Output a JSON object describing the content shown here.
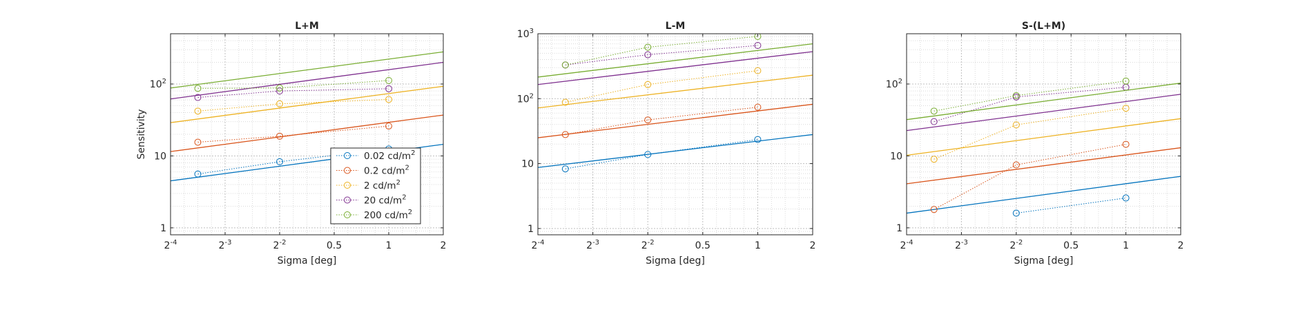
{
  "figure": {
    "series_colors": [
      "#0072BD",
      "#D95319",
      "#EDB120",
      "#7E2F8E",
      "#77AC30"
    ],
    "legend": {
      "entries": [
        {
          "value": "0.02",
          "unit": "cd/m",
          "sup": "2"
        },
        {
          "value": "0.2",
          "unit": "cd/m",
          "sup": "2"
        },
        {
          "value": "2",
          "unit": "cd/m",
          "sup": "2"
        },
        {
          "value": "20",
          "unit": "cd/m",
          "sup": "2"
        },
        {
          "value": "200",
          "unit": "cd/m",
          "sup": "2"
        }
      ]
    }
  },
  "chart_data": [
    {
      "type": "line",
      "title": "L+M",
      "xlabel": "Sigma [deg]",
      "ylabel": "Sensitivity",
      "xscale": "log2",
      "yscale": "log10",
      "xlim": [
        0.0625,
        2
      ],
      "ylim": [
        0.8,
        500
      ],
      "xticks": [
        {
          "v": 0.0625,
          "base": "2",
          "exp": "-4"
        },
        {
          "v": 0.125,
          "base": "2",
          "exp": "-3"
        },
        {
          "v": 0.25,
          "base": "2",
          "exp": "-2"
        },
        {
          "v": 0.5,
          "base": "0.5",
          "exp": ""
        },
        {
          "v": 1,
          "base": "1",
          "exp": ""
        },
        {
          "v": 2,
          "base": "2",
          "exp": ""
        }
      ],
      "yticks": [
        {
          "v": 1,
          "base": "1",
          "exp": ""
        },
        {
          "v": 10,
          "base": "10",
          "exp": ""
        },
        {
          "v": 100,
          "base": "10",
          "exp": "2"
        }
      ],
      "grid": true,
      "legend_position": "bottom-right",
      "series": [
        {
          "name": "0.02 cd/m2",
          "points": [
            [
              0.0884,
              5.6
            ],
            [
              0.25,
              8.3
            ],
            [
              1,
              12.5
            ]
          ],
          "fit": [
            [
              0.0625,
              4.5
            ],
            [
              2,
              14.5
            ]
          ]
        },
        {
          "name": "0.2 cd/m2",
          "points": [
            [
              0.0884,
              15.5
            ],
            [
              0.25,
              18.8
            ],
            [
              1,
              26
            ]
          ],
          "fit": [
            [
              0.0625,
              11.5
            ],
            [
              2,
              37
            ]
          ]
        },
        {
          "name": "2 cd/m2",
          "points": [
            [
              0.0884,
              42
            ],
            [
              0.25,
              53
            ],
            [
              1,
              61
            ]
          ],
          "fit": [
            [
              0.0625,
              29
            ],
            [
              2,
              93
            ]
          ]
        },
        {
          "name": "20 cd/m2",
          "points": [
            [
              0.0884,
              65
            ],
            [
              0.25,
              80
            ],
            [
              1,
              86
            ]
          ],
          "fit": [
            [
              0.0625,
              62
            ],
            [
              2,
              200
            ]
          ]
        },
        {
          "name": "200 cd/m2",
          "points": [
            [
              0.0884,
              87
            ],
            [
              0.25,
              88
            ],
            [
              1,
              112
            ]
          ],
          "fit": [
            [
              0.0625,
              88
            ],
            [
              2,
              280
            ]
          ]
        }
      ]
    },
    {
      "type": "line",
      "title": "L-M",
      "xlabel": "Sigma [deg]",
      "ylabel": "",
      "xscale": "log2",
      "yscale": "log10",
      "xlim": [
        0.0625,
        2
      ],
      "ylim": [
        0.8,
        1000
      ],
      "xticks": [
        {
          "v": 0.0625,
          "base": "2",
          "exp": "-4"
        },
        {
          "v": 0.125,
          "base": "2",
          "exp": "-3"
        },
        {
          "v": 0.25,
          "base": "2",
          "exp": "-2"
        },
        {
          "v": 0.5,
          "base": "0.5",
          "exp": ""
        },
        {
          "v": 1,
          "base": "1",
          "exp": ""
        },
        {
          "v": 2,
          "base": "2",
          "exp": ""
        }
      ],
      "yticks": [
        {
          "v": 1,
          "base": "1",
          "exp": ""
        },
        {
          "v": 10,
          "base": "10",
          "exp": ""
        },
        {
          "v": 100,
          "base": "10",
          "exp": "2"
        },
        {
          "v": 1000,
          "base": "10",
          "exp": "3"
        }
      ],
      "grid": true,
      "series": [
        {
          "name": "0.02 cd/m2",
          "points": [
            [
              0.0884,
              8.3
            ],
            [
              0.25,
              13.8
            ],
            [
              1,
              23.5
            ]
          ],
          "fit": [
            [
              0.0625,
              8.7
            ],
            [
              2,
              28
            ]
          ]
        },
        {
          "name": "0.2 cd/m2",
          "points": [
            [
              0.0884,
              28
            ],
            [
              0.25,
              47
            ],
            [
              1,
              74
            ]
          ],
          "fit": [
            [
              0.0625,
              25
            ],
            [
              2,
              82
            ]
          ]
        },
        {
          "name": "2 cd/m2",
          "points": [
            [
              0.0884,
              88
            ],
            [
              0.25,
              165
            ],
            [
              1,
              270
            ]
          ],
          "fit": [
            [
              0.0625,
              72
            ],
            [
              2,
              230
            ]
          ]
        },
        {
          "name": "20 cd/m2",
          "points": [
            [
              0.0884,
              330
            ],
            [
              0.25,
              475
            ],
            [
              1,
              660
            ]
          ],
          "fit": [
            [
              0.0625,
              165
            ],
            [
              2,
              530
            ]
          ]
        },
        {
          "name": "200 cd/m2",
          "points": [
            [
              0.0884,
              330
            ],
            [
              0.25,
              620
            ],
            [
              1,
              910
            ]
          ],
          "fit": [
            [
              0.0625,
              215
            ],
            [
              2,
              700
            ]
          ]
        }
      ]
    },
    {
      "type": "line",
      "title": "S-(L+M)",
      "xlabel": "Sigma [deg]",
      "ylabel": "",
      "xscale": "log2",
      "yscale": "log10",
      "xlim": [
        0.0625,
        2
      ],
      "ylim": [
        0.8,
        500
      ],
      "xticks": [
        {
          "v": 0.0625,
          "base": "2",
          "exp": "-4"
        },
        {
          "v": 0.125,
          "base": "2",
          "exp": "-3"
        },
        {
          "v": 0.25,
          "base": "2",
          "exp": "-2"
        },
        {
          "v": 0.5,
          "base": "0.5",
          "exp": ""
        },
        {
          "v": 1,
          "base": "1",
          "exp": ""
        },
        {
          "v": 2,
          "base": "2",
          "exp": ""
        }
      ],
      "yticks": [
        {
          "v": 1,
          "base": "1",
          "exp": ""
        },
        {
          "v": 10,
          "base": "10",
          "exp": ""
        },
        {
          "v": 100,
          "base": "10",
          "exp": "2"
        }
      ],
      "grid": true,
      "series": [
        {
          "name": "0.02 cd/m2",
          "points": [
            [
              0.25,
              1.6
            ],
            [
              1,
              2.6
            ]
          ],
          "fit": [
            [
              0.0625,
              1.6
            ],
            [
              2,
              5.2
            ]
          ]
        },
        {
          "name": "0.2 cd/m2",
          "points": [
            [
              0.0884,
              1.8
            ],
            [
              0.25,
              7.5
            ],
            [
              1,
              14.5
            ]
          ],
          "fit": [
            [
              0.0625,
              4.1
            ],
            [
              2,
              13
            ]
          ]
        },
        {
          "name": "2 cd/m2",
          "points": [
            [
              0.0884,
              9
            ],
            [
              0.25,
              27
            ],
            [
              1,
              46
            ]
          ],
          "fit": [
            [
              0.0625,
              10.2
            ],
            [
              2,
              33
            ]
          ]
        },
        {
          "name": "20 cd/m2",
          "points": [
            [
              0.0884,
              30
            ],
            [
              0.25,
              66
            ],
            [
              1,
              90
            ]
          ],
          "fit": [
            [
              0.0625,
              22.5
            ],
            [
              2,
              72
            ]
          ]
        },
        {
          "name": "200 cd/m2",
          "points": [
            [
              0.0884,
              42
            ],
            [
              0.25,
              69
            ],
            [
              1,
              110
            ]
          ],
          "fit": [
            [
              0.0625,
              32
            ],
            [
              2,
              103
            ]
          ]
        }
      ]
    }
  ]
}
